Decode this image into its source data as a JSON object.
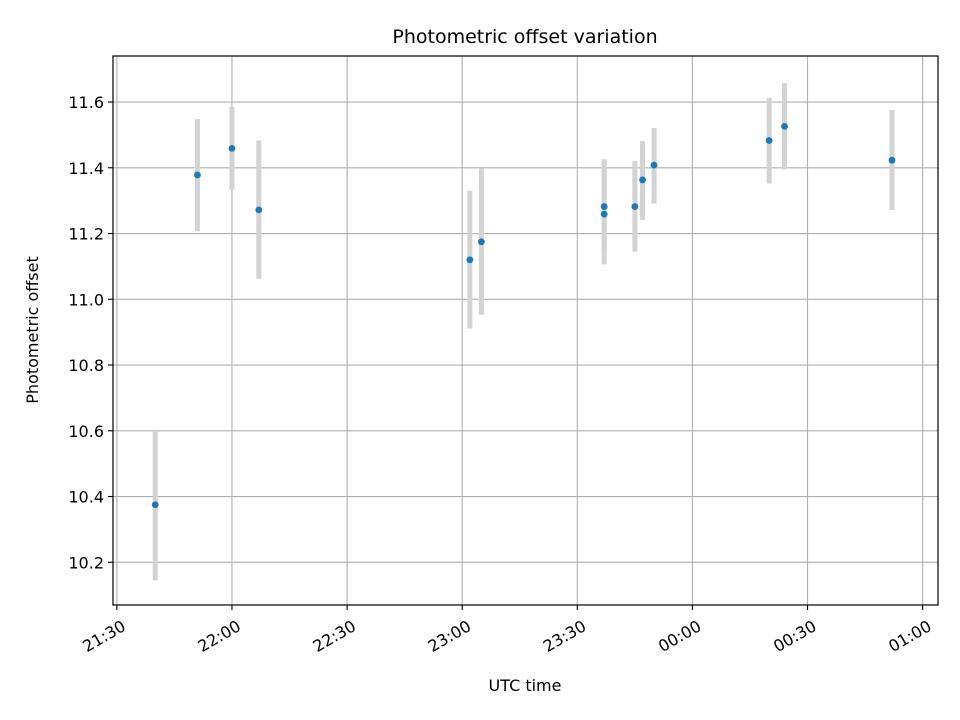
{
  "chart_data": {
    "type": "scatter",
    "title": "Photometric offset variation",
    "xlabel": "UTC time",
    "ylabel": "Photometric offset",
    "grid": true,
    "legend": "none",
    "x_range": [
      "21:29",
      "01:04"
    ],
    "ylim": [
      10.07,
      11.74
    ],
    "x_ticks": [
      "21:30",
      "22:00",
      "22:30",
      "23:00",
      "23:30",
      "00:00",
      "00:30",
      "01:00"
    ],
    "y_ticks": [
      10.2,
      10.4,
      10.6,
      10.8,
      11.0,
      11.2,
      11.4,
      11.6
    ],
    "marker_color": "#1f77b4",
    "errorbar_color": "#d3d3d3",
    "series": [
      {
        "points": [
          {
            "time": "21:40",
            "value": 10.375,
            "err_low": 10.145,
            "err_high": 10.6
          },
          {
            "time": "21:51",
            "value": 11.378,
            "err_low": 11.207,
            "err_high": 11.548
          },
          {
            "time": "22:00",
            "value": 11.459,
            "err_low": 11.333,
            "err_high": 11.585
          },
          {
            "time": "22:07",
            "value": 11.272,
            "err_low": 11.062,
            "err_high": 11.483
          },
          {
            "time": "23:02",
            "value": 11.12,
            "err_low": 10.911,
            "err_high": 11.33
          },
          {
            "time": "23:05",
            "value": 11.175,
            "err_low": 10.953,
            "err_high": 11.398
          },
          {
            "time": "23:37",
            "value": 11.282,
            "err_low": 11.139,
            "err_high": 11.426
          },
          {
            "time": "23:37",
            "value": 11.259,
            "err_low": 11.106,
            "err_high": 11.412
          },
          {
            "time": "23:45",
            "value": 11.282,
            "err_low": 11.145,
            "err_high": 11.421
          },
          {
            "time": "23:47",
            "value": 11.363,
            "err_low": 11.241,
            "err_high": 11.481
          },
          {
            "time": "23:50",
            "value": 11.408,
            "err_low": 11.291,
            "err_high": 11.521
          },
          {
            "time": "00:20",
            "value": 11.483,
            "err_low": 11.352,
            "err_high": 11.613
          },
          {
            "time": "00:24",
            "value": 11.526,
            "err_low": 11.395,
            "err_high": 11.658
          },
          {
            "time": "00:52",
            "value": 11.423,
            "err_low": 11.272,
            "err_high": 11.576
          }
        ]
      }
    ]
  }
}
